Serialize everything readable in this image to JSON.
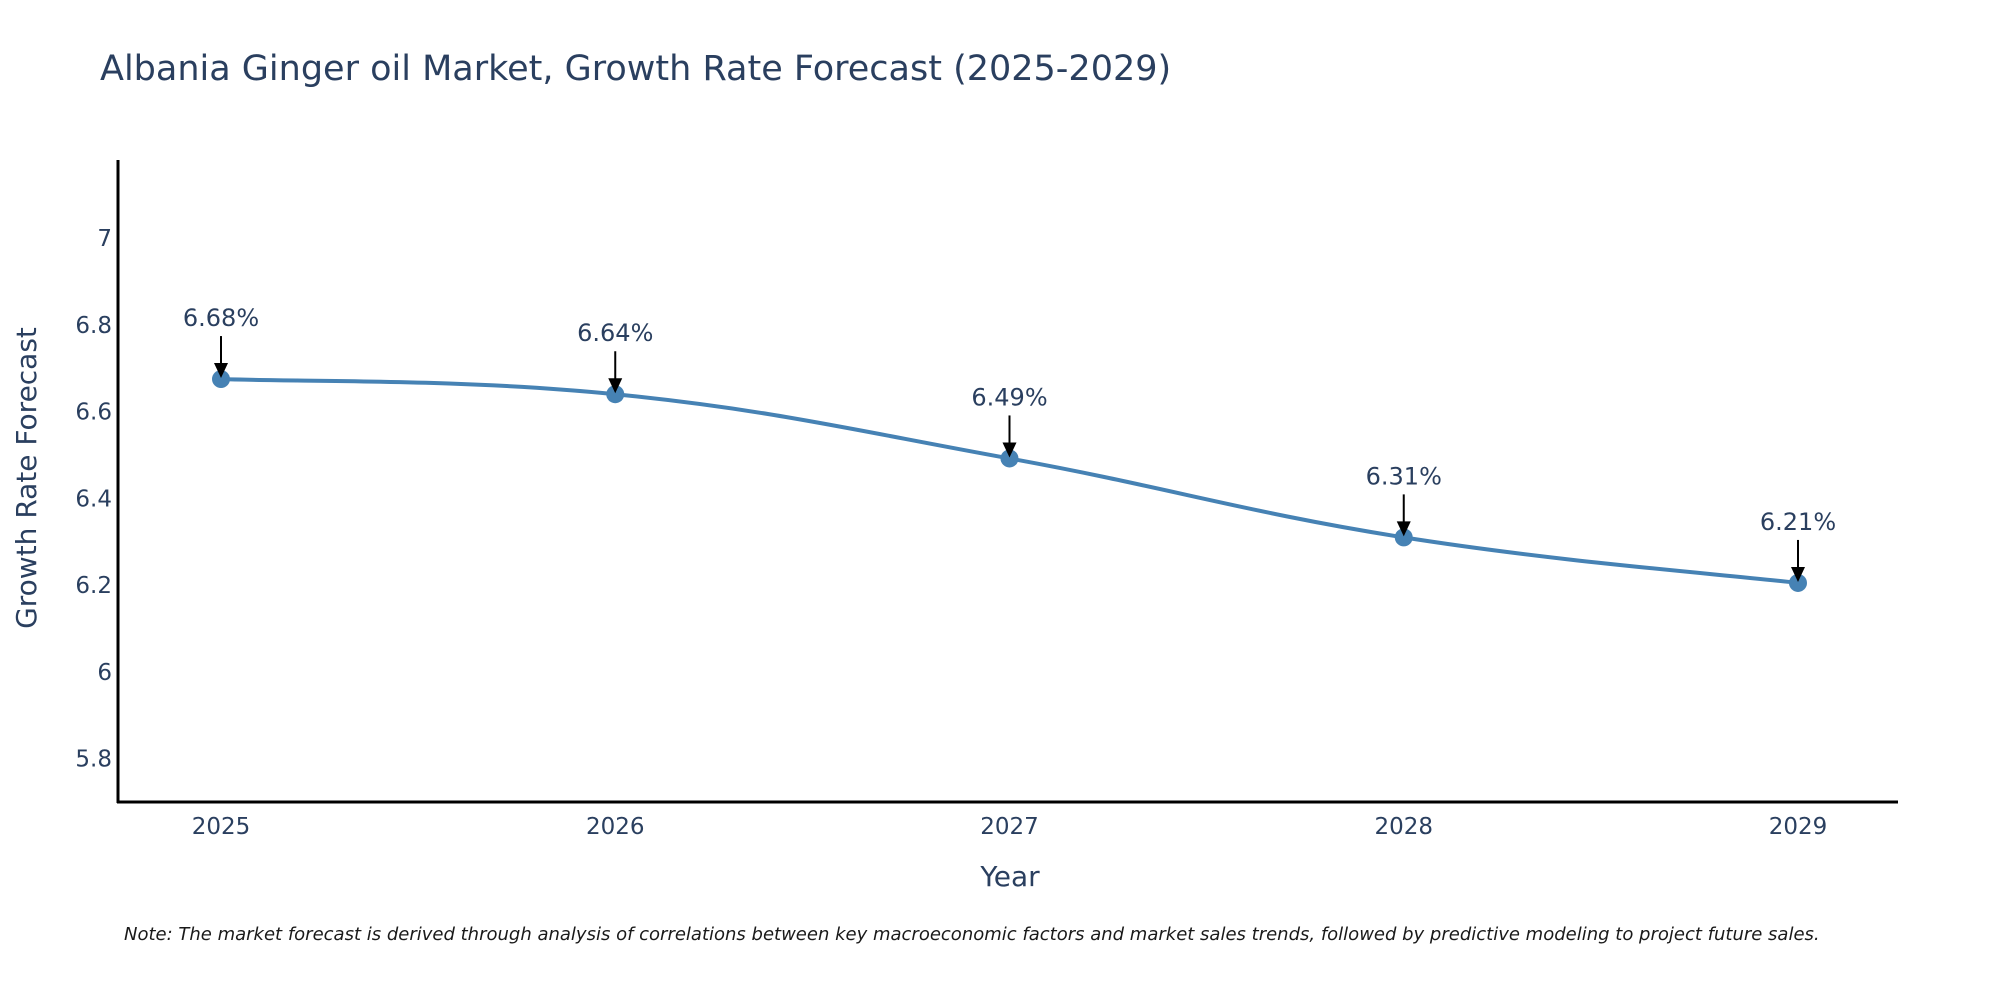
{
  "chart_data": {
    "type": "line",
    "title": "Albania Ginger oil Market, Growth Rate Forecast (2025-2029)",
    "xlabel": "Year",
    "ylabel": "Growth Rate Forecast",
    "categories": [
      "2025",
      "2026",
      "2027",
      "2028",
      "2029"
    ],
    "series": [
      {
        "name": "Growth Rate Forecast",
        "values": [
          6.675,
          6.64,
          6.492,
          6.31,
          6.205
        ],
        "labels": [
          "6.68%",
          "6.64%",
          "6.49%",
          "6.31%",
          "6.21%"
        ],
        "color": "#4682b4"
      }
    ],
    "ylim": [
      5.7,
      7.18
    ],
    "yticks": [
      5.8,
      6,
      6.2,
      6.4,
      6.6,
      6.8,
      7
    ],
    "ytick_labels": [
      "5.8",
      "6",
      "6.2",
      "6.4",
      "6.6",
      "6.8",
      "7"
    ],
    "grid": false,
    "legend": "none",
    "line_shape": "smooth",
    "annotation_color": "#000000",
    "axis_color": "#000000",
    "note": "Note: The market forecast is derived through analysis of correlations between key macroeconomic factors and market sales trends, followed by predictive modeling to project future sales."
  }
}
